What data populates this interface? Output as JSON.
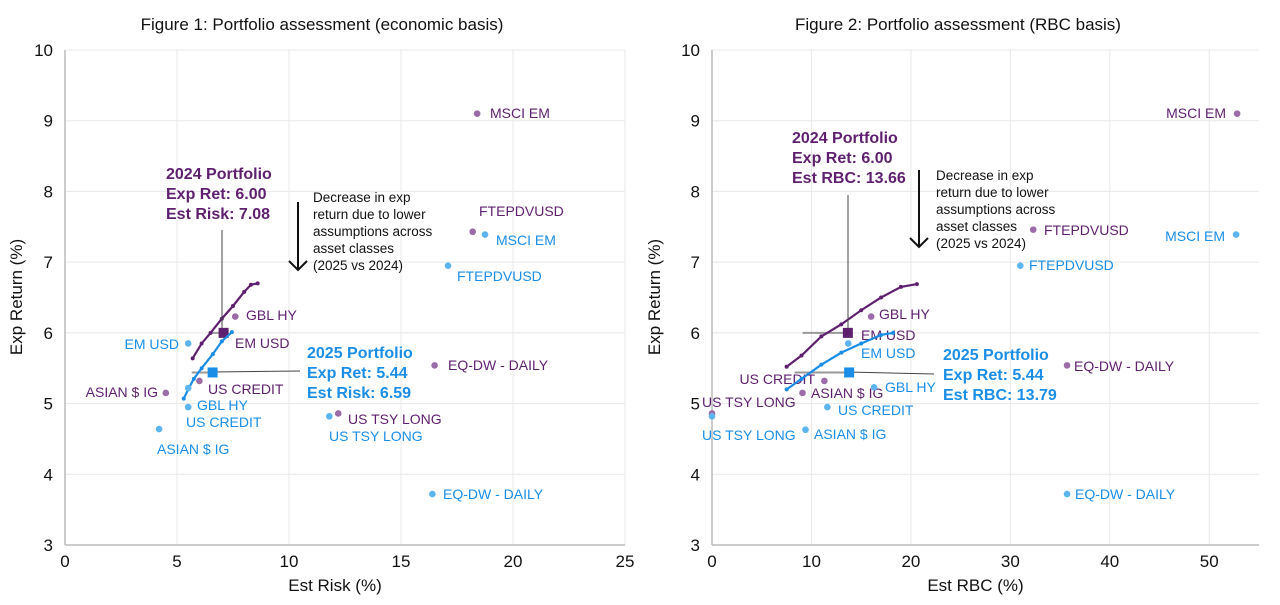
{
  "colors": {
    "series_2024": "#5e1f6e",
    "dot_2024": "#9b6ca8",
    "series_2025": "#1a8ee6",
    "dot_2025": "#5cb5ee",
    "grid": "#e8e8e8",
    "axis": "#bbbbbb"
  },
  "chart_data": [
    {
      "type": "scatter",
      "title": "Figure 1: Portfolio assessment (economic basis)",
      "xlabel": "Est Risk (%)",
      "ylabel": "Exp Return (%)",
      "xlim": [
        0,
        25
      ],
      "ylim": [
        3,
        10
      ],
      "xticks": [
        "0",
        "5",
        "10",
        "15",
        "20",
        "25"
      ],
      "yticks": [
        "3",
        "4",
        "5",
        "6",
        "7",
        "8",
        "9",
        "10"
      ],
      "grid": true,
      "series": [
        {
          "points": [
            {
              "label": "MSCI EM",
              "x": 18.4,
              "y": 9.1
            },
            {
              "label": "FTEPDVUSD",
              "x": 18.2,
              "y": 7.43
            },
            {
              "label": "GBL HY",
              "x": 7.6,
              "y": 6.23
            },
            {
              "label": "EM USD",
              "x": 7.1,
              "y": 6.0
            },
            {
              "label": "US CREDIT",
              "x": 6.0,
              "y": 5.32
            },
            {
              "label": "ASIAN $ IG",
              "x": 4.5,
              "y": 5.15
            },
            {
              "label": "US TSY LONG",
              "x": 12.2,
              "y": 4.86
            },
            {
              "label": "EQ-DW - DAILY",
              "x": 16.5,
              "y": 5.54
            }
          ],
          "frontier": [
            [
              5.7,
              5.64
            ],
            [
              6.1,
              5.85
            ],
            [
              6.5,
              6.0
            ],
            [
              7.0,
              6.2
            ],
            [
              7.5,
              6.38
            ],
            [
              8.0,
              6.58
            ],
            [
              8.3,
              6.68
            ],
            [
              8.6,
              6.7
            ]
          ],
          "portfolio": {
            "x": 7.08,
            "y": 6.0,
            "lines": [
              "2024 Portfolio",
              "Exp Ret: 6.00",
              "Est Risk: 7.08"
            ]
          }
        },
        {
          "points": [
            {
              "label": "MSCI EM",
              "x": 18.75,
              "y": 7.39
            },
            {
              "label": "FTEPDVUSD",
              "x": 17.1,
              "y": 6.95
            },
            {
              "label": "EM USD",
              "x": 5.5,
              "y": 5.85
            },
            {
              "label": "GBL HY",
              "x": 5.5,
              "y": 4.95
            },
            {
              "label": "US CREDIT",
              "x": 5.5,
              "y": 5.22
            },
            {
              "label": "ASIAN $ IG",
              "x": 4.2,
              "y": 4.64
            },
            {
              "label": "US TSY LONG",
              "x": 11.8,
              "y": 4.82
            },
            {
              "label": "EQ-DW - DAILY",
              "x": 16.4,
              "y": 3.72
            }
          ],
          "frontier": [
            [
              5.3,
              5.07
            ],
            [
              5.5,
              5.2
            ],
            [
              5.75,
              5.35
            ],
            [
              6.1,
              5.5
            ],
            [
              6.6,
              5.7
            ],
            [
              7.0,
              5.88
            ],
            [
              7.45,
              6.01
            ]
          ],
          "portfolio": {
            "x": 6.59,
            "y": 5.44,
            "lines": [
              "2025 Portfolio",
              "Exp Ret: 5.44",
              "Est Risk: 6.59"
            ]
          }
        }
      ],
      "annotation": [
        "Decrease in exp",
        "return due to lower",
        "assumptions across",
        "asset classes",
        "(2025 vs 2024)"
      ]
    },
    {
      "type": "scatter",
      "title": "Figure 2: Portfolio assessment (RBC basis)",
      "xlabel": "Est RBC (%)",
      "ylabel": "Exp Return (%)",
      "xlim": [
        0,
        55
      ],
      "ylim": [
        3,
        10
      ],
      "xticks": [
        "0",
        "10",
        "20",
        "30",
        "40",
        "50"
      ],
      "yticks": [
        "3",
        "4",
        "5",
        "6",
        "7",
        "8",
        "9",
        "10"
      ],
      "grid": true,
      "series": [
        {
          "points": [
            {
              "label": "MSCI EM",
              "x": 52.8,
              "y": 9.1
            },
            {
              "label": "FTEPDVUSD",
              "x": 32.3,
              "y": 7.46
            },
            {
              "label": "GBL HY",
              "x": 16.0,
              "y": 6.23
            },
            {
              "label": "EM USD",
              "x": 13.7,
              "y": 6.0
            },
            {
              "label": "US CREDIT",
              "x": 11.3,
              "y": 5.32
            },
            {
              "label": "ASIAN $ IG",
              "x": 9.1,
              "y": 5.15
            },
            {
              "label": "US TSY LONG",
              "x": 0,
              "y": 4.86
            },
            {
              "label": "EQ-DW - DAILY",
              "x": 35.7,
              "y": 5.54
            }
          ],
          "frontier": [
            [
              7.5,
              5.52
            ],
            [
              9,
              5.68
            ],
            [
              11,
              5.95
            ],
            [
              13,
              6.12
            ],
            [
              15,
              6.32
            ],
            [
              17,
              6.5
            ],
            [
              19,
              6.65
            ],
            [
              20.6,
              6.69
            ]
          ],
          "portfolio": {
            "x": 13.66,
            "y": 6.0,
            "lines": [
              "2024 Portfolio",
              "Exp Ret: 6.00",
              "Est RBC: 13.66"
            ]
          }
        },
        {
          "points": [
            {
              "label": "MSCI EM",
              "x": 52.7,
              "y": 7.39
            },
            {
              "label": "FTEPDVUSD",
              "x": 31.0,
              "y": 6.95
            },
            {
              "label": "EM USD",
              "x": 13.7,
              "y": 5.85
            },
            {
              "label": "GBL HY",
              "x": 16.3,
              "y": 5.23
            },
            {
              "label": "US CREDIT",
              "x": 11.6,
              "y": 4.95
            },
            {
              "label": "ASIAN $ IG",
              "x": 9.4,
              "y": 4.63
            },
            {
              "label": "US TSY LONG",
              "x": 0,
              "y": 4.82
            },
            {
              "label": "EQ-DW - DAILY",
              "x": 35.7,
              "y": 3.72
            }
          ],
          "frontier": [
            [
              7.5,
              5.2
            ],
            [
              9,
              5.35
            ],
            [
              11,
              5.55
            ],
            [
              13,
              5.72
            ],
            [
              15,
              5.85
            ],
            [
              17,
              5.97
            ],
            [
              18.2,
              6.0
            ]
          ],
          "portfolio": {
            "x": 13.79,
            "y": 5.44,
            "lines": [
              "2025 Portfolio",
              "Exp Ret: 5.44",
              "Est RBC: 13.79"
            ]
          }
        }
      ],
      "annotation": [
        "Decrease in exp",
        "return due to lower",
        "assumptions across",
        "asset classes",
        "(2025 vs 2024)"
      ]
    }
  ]
}
